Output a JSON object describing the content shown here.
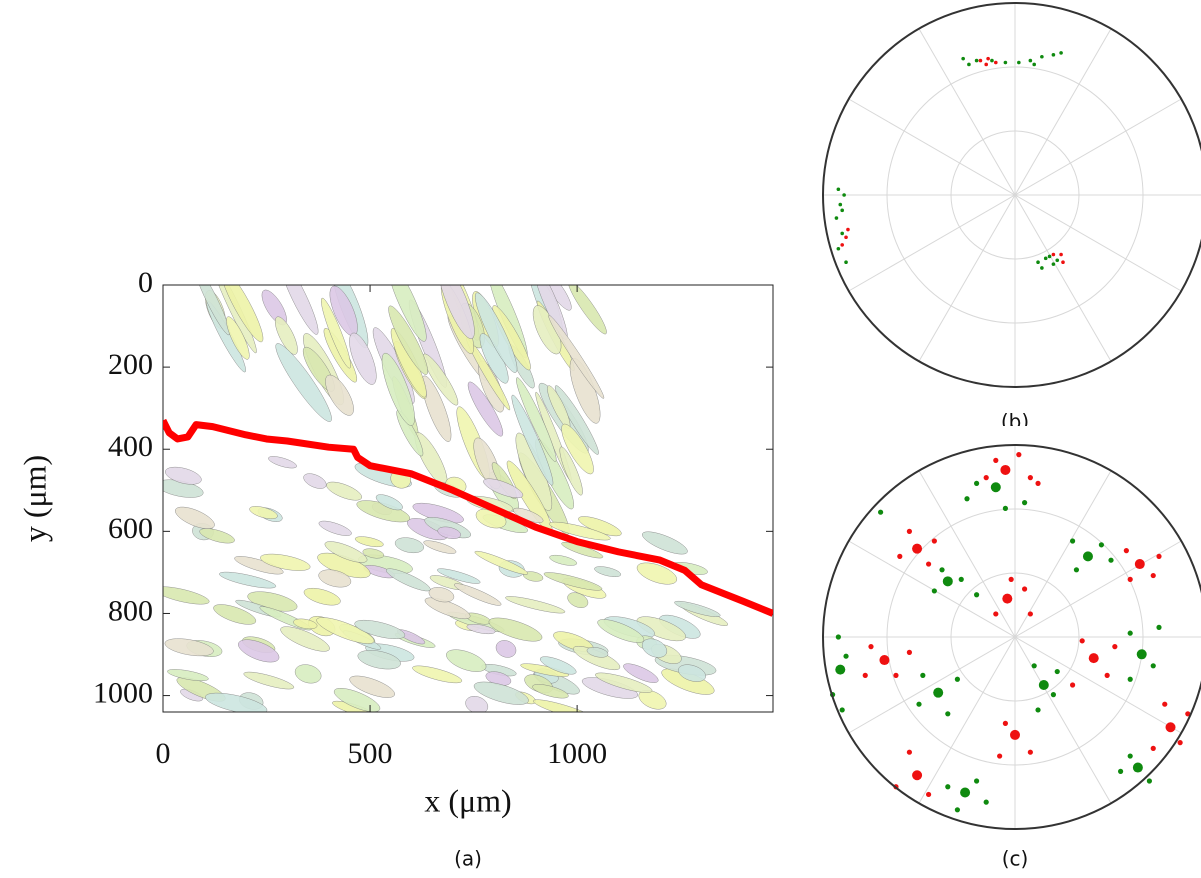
{
  "chart_data": [
    {
      "type": "line",
      "xlabel": "x (μm)",
      "ylabel": "y (μm)",
      "caption": "(a)",
      "xlim": [
        0,
        1473
      ],
      "ylim": [
        0,
        1040
      ],
      "y_reversed": true,
      "xticks": [
        0,
        500,
        1000
      ],
      "yticks": [
        0,
        200,
        400,
        600,
        800,
        1000
      ],
      "series": [
        {
          "color": "#ff0000",
          "x": [
            0,
            15,
            35,
            60,
            80,
            120,
            200,
            250,
            300,
            400,
            460,
            470,
            500,
            600,
            700,
            800,
            900,
            1000,
            1100,
            1200,
            1260,
            1300,
            1400,
            1473
          ],
          "y": [
            330,
            360,
            375,
            370,
            340,
            345,
            365,
            375,
            380,
            395,
            400,
            420,
            440,
            460,
            500,
            545,
            590,
            625,
            650,
            670,
            695,
            730,
            770,
            800
          ]
        }
      ]
    },
    {
      "type": "scatter",
      "caption": "(b)",
      "xlim": [
        -1,
        1
      ],
      "ylim": [
        -1,
        1
      ],
      "series": [
        {
          "color": "#0f8a0f",
          "marker_size": 1.8,
          "x": [
            -0.27,
            -0.2,
            -0.12,
            -0.05,
            0.02,
            0.08,
            0.14,
            0.2,
            0.24,
            -0.24,
            0.1,
            -0.92,
            -0.91,
            -0.93,
            -0.9,
            -0.92,
            -0.88,
            -0.9,
            -0.89,
            0.12,
            0.16,
            0.2,
            0.14,
            0.18,
            0.22
          ],
          "y": [
            0.71,
            0.7,
            0.7,
            0.69,
            0.69,
            0.7,
            0.72,
            0.73,
            0.74,
            0.68,
            0.68,
            0.03,
            -0.05,
            -0.12,
            -0.2,
            -0.28,
            -0.35,
            -0.08,
            0,
            -0.35,
            -0.33,
            -0.36,
            -0.38,
            -0.32,
            -0.34
          ]
        },
        {
          "color": "#ee1111",
          "marker_size": 1.8,
          "x": [
            -0.18,
            -0.14,
            -0.1,
            -0.15,
            -0.88,
            -0.9,
            -0.87,
            0.24,
            0.25,
            0.2
          ],
          "y": [
            0.7,
            0.71,
            0.69,
            0.68,
            -0.22,
            -0.26,
            -0.18,
            -0.31,
            -0.35,
            -0.31
          ]
        }
      ]
    },
    {
      "type": "scatter",
      "caption": "(c)",
      "xlim": [
        -1,
        1
      ],
      "ylim": [
        -1,
        1
      ],
      "series": [
        {
          "color": "#ee1111",
          "marker_size": 5,
          "x": [
            -0.05,
            -0.51,
            0.65,
            -0.04,
            -0.68,
            0.41,
            0,
            0.81,
            -0.51
          ],
          "y": [
            0.87,
            0.46,
            0.38,
            0.2,
            -0.12,
            -0.11,
            -0.51,
            -0.47,
            -0.72
          ]
        },
        {
          "color": "#0f8a0f",
          "marker_size": 5,
          "x": [
            -0.1,
            -0.35,
            0.38,
            0.66,
            0.15,
            -0.4,
            -0.91,
            -0.26,
            0.64
          ],
          "y": [
            0.78,
            0.29,
            0.42,
            -0.09,
            -0.25,
            -0.29,
            -0.17,
            -0.81,
            -0.68
          ]
        },
        {
          "color": "#ee1111",
          "marker_size": 2.6,
          "x": [
            -0.1,
            0.02,
            0.08,
            0.12,
            -0.15,
            -0.55,
            -0.45,
            -0.6,
            -0.42,
            0.58,
            0.72,
            0.75,
            0.6,
            -0.02,
            0.08,
            -0.1,
            0.05,
            -0.75,
            -0.62,
            -0.55,
            -0.78,
            0.35,
            0.48,
            0.3,
            0.52,
            -0.05,
            0.08,
            -0.08,
            0.78,
            0.86,
            0.72,
            0.9,
            -0.55,
            -0.45,
            -0.62
          ],
          "y": [
            0.92,
            0.95,
            0.83,
            0.8,
            0.83,
            0.55,
            0.38,
            0.42,
            0.5,
            0.45,
            0.32,
            0.42,
            0.3,
            0.3,
            0.12,
            0.12,
            0.25,
            -0.05,
            -0.2,
            -0.08,
            -0.2,
            -0.02,
            -0.2,
            -0.25,
            -0.05,
            -0.45,
            -0.6,
            -0.62,
            -0.35,
            -0.55,
            -0.58,
            -0.4,
            -0.6,
            -0.82,
            -0.78
          ]
        },
        {
          "color": "#0f8a0f",
          "marker_size": 2.6,
          "x": [
            -0.2,
            -0.25,
            0.05,
            -0.05,
            -0.28,
            -0.42,
            -0.2,
            -0.38,
            0.3,
            0.45,
            0.32,
            0.5,
            0.6,
            0.72,
            0.6,
            0.75,
            0.1,
            0.2,
            0.12,
            0.22,
            -0.48,
            -0.35,
            -0.3,
            -0.5,
            -0.92,
            -0.95,
            -0.88,
            -0.9,
            -0.7,
            -0.35,
            -0.2,
            -0.15,
            -0.3,
            0.55,
            0.7,
            0.6
          ],
          "y": [
            0.8,
            0.72,
            0.7,
            0.67,
            0.3,
            0.24,
            0.22,
            0.35,
            0.5,
            0.48,
            0.35,
            0.4,
            0.02,
            -0.15,
            -0.22,
            0.05,
            -0.15,
            -0.3,
            -0.38,
            -0.18,
            -0.2,
            -0.4,
            -0.22,
            -0.35,
            0,
            -0.3,
            -0.1,
            -0.38,
            0.65,
            -0.78,
            -0.75,
            -0.86,
            -0.9,
            -0.7,
            -0.75,
            -0.62
          ]
        }
      ]
    }
  ]
}
